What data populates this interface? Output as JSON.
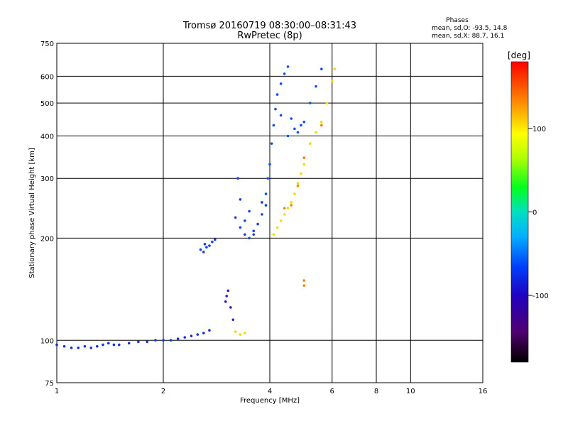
{
  "header": {
    "title": "Tromsø 20160719 08:30:00–08:31:43",
    "subtitle": "RwPretec (8p)"
  },
  "phases_box": {
    "heading": "Phases",
    "line1": "mean, sd,O: -93.5, 14.8",
    "line2": "mean, sd,X:  88.7, 16.1"
  },
  "chart_data": {
    "type": "scatter",
    "title": "Tromsø 20160719 08:30:00–08:31:43",
    "subtitle": "RwPretec (8p)",
    "xlabel": "Frequency [MHz]",
    "ylabel": "Stationary phase Virtual Height [km]",
    "x_scale": "log",
    "y_scale": "log",
    "xlim": [
      1,
      16
    ],
    "ylim": [
      75,
      750
    ],
    "x_ticks": [
      1,
      2,
      4,
      6,
      8,
      10,
      16
    ],
    "y_ticks": [
      75,
      100,
      200,
      300,
      400,
      500,
      600,
      750
    ],
    "grid": true,
    "colorbar": {
      "label": "[deg]",
      "ticks": [
        100,
        0,
        -100
      ],
      "range": [
        -180,
        180
      ],
      "colormap": "rainbow (black→purple→blue→cyan→green→yellow→red)"
    },
    "series": [
      {
        "name": "",
        "phase_deg": -100,
        "color": "#1030e0",
        "points": [
          [
            1.0,
            97
          ],
          [
            1.05,
            96
          ],
          [
            1.1,
            95
          ],
          [
            1.15,
            95
          ],
          [
            1.2,
            96
          ],
          [
            1.25,
            95
          ],
          [
            1.3,
            96
          ],
          [
            1.35,
            97
          ],
          [
            1.4,
            98
          ],
          [
            1.45,
            97
          ],
          [
            1.5,
            97
          ],
          [
            1.6,
            98
          ],
          [
            1.7,
            99
          ],
          [
            1.8,
            99
          ],
          [
            1.9,
            100
          ],
          [
            2.0,
            100
          ],
          [
            2.1,
            100
          ],
          [
            2.2,
            101
          ],
          [
            2.3,
            102
          ],
          [
            2.4,
            103
          ],
          [
            2.5,
            104
          ],
          [
            2.6,
            105
          ],
          [
            2.7,
            107
          ]
        ]
      },
      {
        "name": "",
        "phase_deg": -120,
        "color": "#3020c0",
        "points": [
          [
            3.0,
            130
          ],
          [
            3.05,
            140
          ],
          [
            3.1,
            125
          ],
          [
            3.15,
            115
          ],
          [
            3.02,
            135
          ]
        ]
      },
      {
        "name": "",
        "phase_deg": -100,
        "color": "#1040e0",
        "points": [
          [
            2.55,
            185
          ],
          [
            2.6,
            182
          ],
          [
            2.65,
            188
          ],
          [
            2.7,
            190
          ],
          [
            2.75,
            195
          ],
          [
            2.8,
            198
          ],
          [
            2.62,
            192
          ]
        ]
      },
      {
        "name": "",
        "phase_deg": -100,
        "color": "#1840e0",
        "points": [
          [
            3.2,
            230
          ],
          [
            3.3,
            215
          ],
          [
            3.4,
            205
          ],
          [
            3.5,
            200
          ],
          [
            3.6,
            210
          ],
          [
            3.7,
            220
          ],
          [
            3.8,
            235
          ],
          [
            3.9,
            250
          ],
          [
            3.3,
            260
          ],
          [
            3.25,
            300
          ],
          [
            3.5,
            240
          ],
          [
            3.6,
            205
          ],
          [
            3.8,
            255
          ],
          [
            3.4,
            225
          ]
        ]
      },
      {
        "name": "",
        "phase_deg": -100,
        "color": "#1050f0",
        "points": [
          [
            3.9,
            270
          ],
          [
            3.95,
            300
          ],
          [
            4.0,
            330
          ],
          [
            4.05,
            380
          ],
          [
            4.1,
            430
          ],
          [
            4.15,
            480
          ],
          [
            4.2,
            530
          ],
          [
            4.3,
            570
          ],
          [
            4.4,
            610
          ],
          [
            4.5,
            640
          ],
          [
            4.6,
            450
          ],
          [
            4.7,
            420
          ],
          [
            4.8,
            410
          ],
          [
            5.0,
            440
          ],
          [
            5.2,
            500
          ],
          [
            5.4,
            560
          ],
          [
            5.6,
            630
          ],
          [
            4.3,
            460
          ],
          [
            4.5,
            400
          ],
          [
            4.9,
            430
          ]
        ]
      },
      {
        "name": "",
        "phase_deg": 100,
        "color": "#e8e000",
        "points": [
          [
            4.1,
            205
          ],
          [
            4.2,
            215
          ],
          [
            4.3,
            225
          ],
          [
            4.4,
            235
          ],
          [
            4.5,
            245
          ],
          [
            4.6,
            255
          ],
          [
            4.7,
            270
          ],
          [
            4.8,
            290
          ],
          [
            4.9,
            310
          ],
          [
            5.0,
            330
          ],
          [
            5.2,
            380
          ],
          [
            5.4,
            410
          ],
          [
            5.6,
            440
          ],
          [
            5.8,
            500
          ],
          [
            6.0,
            580
          ],
          [
            6.1,
            630
          ],
          [
            3.2,
            106
          ],
          [
            3.3,
            104
          ],
          [
            3.4,
            105
          ]
        ]
      },
      {
        "name": "",
        "phase_deg": 150,
        "color": "#ff8000",
        "points": [
          [
            4.4,
            245
          ],
          [
            4.6,
            250
          ],
          [
            4.8,
            285
          ],
          [
            5.0,
            345
          ],
          [
            5.6,
            430
          ],
          [
            5.0,
            150
          ],
          [
            5.0,
            145
          ]
        ]
      }
    ]
  }
}
